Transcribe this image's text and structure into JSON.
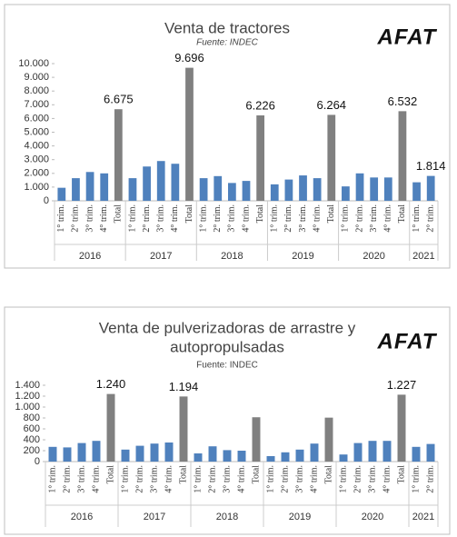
{
  "chart_data": [
    {
      "type": "bar",
      "title": "Venta de tractores",
      "subtitle": "Fuente: INDEC",
      "subtitle_italic": true,
      "logo": "AFAT",
      "categories": [
        "1° trim.",
        "2° trim.",
        "3° trim.",
        "4° trim.",
        "Total",
        "1° trim.",
        "2° trim.",
        "3° trim.",
        "4° trim.",
        "Total",
        "1° trim.",
        "2° trim.",
        "3° trim.",
        "4° trim.",
        "Total",
        "1° trim.",
        "2° trim.",
        "3° trim.",
        "4° trim.",
        "Total",
        "1° trim.",
        "2° trim.",
        "3° trim.",
        "4° trim.",
        "Total",
        "1° trim.",
        "2° trim."
      ],
      "groups": [
        {
          "name": "2016",
          "size": 5
        },
        {
          "name": "2017",
          "size": 5
        },
        {
          "name": "2018",
          "size": 5
        },
        {
          "name": "2019",
          "size": 5
        },
        {
          "name": "2020",
          "size": 5
        },
        {
          "name": "2021",
          "size": 2
        }
      ],
      "values": [
        950,
        1650,
        2100,
        2000,
        6675,
        1650,
        2500,
        2900,
        2700,
        9696,
        1650,
        1800,
        1300,
        1450,
        6226,
        1200,
        1550,
        1850,
        1650,
        6264,
        1050,
        2000,
        1700,
        1700,
        6532,
        1350,
        1814
      ],
      "value_labels": [
        null,
        null,
        null,
        null,
        "6.675",
        null,
        null,
        null,
        null,
        "9.696",
        null,
        null,
        null,
        null,
        "6.226",
        null,
        null,
        null,
        null,
        "6.264",
        null,
        null,
        null,
        null,
        "6.532",
        null,
        "1.814"
      ],
      "bar_colors": [
        "#4f81bd",
        "#4f81bd",
        "#4f81bd",
        "#4f81bd",
        "#808080",
        "#4f81bd",
        "#4f81bd",
        "#4f81bd",
        "#4f81bd",
        "#808080",
        "#4f81bd",
        "#4f81bd",
        "#4f81bd",
        "#4f81bd",
        "#808080",
        "#4f81bd",
        "#4f81bd",
        "#4f81bd",
        "#4f81bd",
        "#808080",
        "#4f81bd",
        "#4f81bd",
        "#4f81bd",
        "#4f81bd",
        "#808080",
        "#4f81bd",
        "#4f81bd"
      ],
      "ylim": [
        0,
        10000
      ],
      "yticks": [
        0,
        {
          "value": 1000,
          "label": "1.000"
        },
        {
          "value": 2000,
          "label": "2.000"
        },
        {
          "value": 3000,
          "label": "3.000"
        },
        {
          "value": 4000,
          "label": "4.000"
        },
        {
          "value": 5000,
          "label": "5.000"
        },
        {
          "value": 6000,
          "label": "6.000"
        },
        {
          "value": 7000,
          "label": "7.000"
        },
        {
          "value": 8000,
          "label": "8.000"
        },
        {
          "value": 9000,
          "label": "9.000"
        },
        {
          "value": 10000,
          "label": "10.000"
        }
      ],
      "grid": false
    },
    {
      "type": "bar",
      "title": [
        "Venta de pulverizadoras de arrastre y",
        "autopropulsadas"
      ],
      "subtitle": "Fuente: INDEC",
      "subtitle_italic": false,
      "logo": "AFAT",
      "categories": [
        "1° trim.",
        "2° trim.",
        "3° trim.",
        "4° trim.",
        "Total",
        "1° trim.",
        "2° trim.",
        "3° trim.",
        "4° trim.",
        "Total",
        "1° trim.",
        "2° trim.",
        "3° trim.",
        "4° trim.",
        "Total",
        "1° trim.",
        "2° trim.",
        "3° trim.",
        "4° trim.",
        "Total",
        "1° trim.",
        "2° trim.",
        "3° trim.",
        "4° trim.",
        "Total",
        "1° trim.",
        "2° trim."
      ],
      "groups": [
        {
          "name": "2016",
          "size": 5
        },
        {
          "name": "2017",
          "size": 5
        },
        {
          "name": "2018",
          "size": 5
        },
        {
          "name": "2019",
          "size": 5
        },
        {
          "name": "2020",
          "size": 5
        },
        {
          "name": "2021",
          "size": 2
        }
      ],
      "values": [
        270,
        260,
        340,
        380,
        1240,
        220,
        290,
        330,
        350,
        1194,
        150,
        280,
        210,
        200,
        813,
        100,
        170,
        220,
        330,
        806,
        130,
        340,
        380,
        380,
        1227,
        270,
        323
      ],
      "value_labels": [
        null,
        null,
        null,
        null,
        "1.240",
        null,
        null,
        null,
        null,
        "1.194",
        null,
        null,
        null,
        null,
        null,
        null,
        null,
        null,
        null,
        null,
        null,
        null,
        null,
        null,
        "1.227",
        null,
        null
      ],
      "bar_colors": [
        "#4f81bd",
        "#4f81bd",
        "#4f81bd",
        "#4f81bd",
        "#808080",
        "#4f81bd",
        "#4f81bd",
        "#4f81bd",
        "#4f81bd",
        "#808080",
        "#4f81bd",
        "#4f81bd",
        "#4f81bd",
        "#4f81bd",
        "#808080",
        "#4f81bd",
        "#4f81bd",
        "#4f81bd",
        "#4f81bd",
        "#808080",
        "#4f81bd",
        "#4f81bd",
        "#4f81bd",
        "#4f81bd",
        "#808080",
        "#4f81bd",
        "#4f81bd"
      ],
      "ylim": [
        0,
        1400
      ],
      "yticks": [
        0,
        200,
        400,
        600,
        800,
        {
          "value": 1000,
          "label": "1.000"
        },
        {
          "value": 1200,
          "label": "1.200"
        },
        {
          "value": 1400,
          "label": "1.400"
        }
      ],
      "grid": false
    }
  ]
}
